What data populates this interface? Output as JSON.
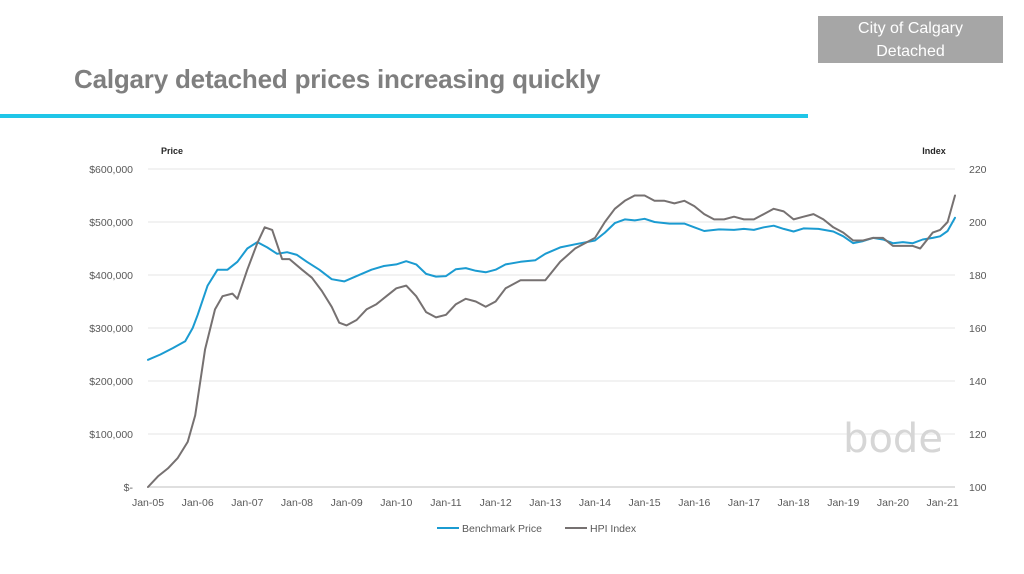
{
  "badge": {
    "line1": "City of Calgary",
    "line2": "Detached"
  },
  "page_title": "Calgary detached prices increasing quickly",
  "logo": "bode",
  "colors": {
    "accent_rule": "#1fc6e8",
    "benchmark": "#1b9bd1",
    "hpi": "#767171",
    "badge_bg": "#a6a6a6"
  },
  "chart_data": {
    "type": "line",
    "left_axis_title": "Price",
    "right_axis_title": "Index",
    "ylim_left": [
      0,
      600000
    ],
    "ylim_right": [
      100,
      220
    ],
    "y_ticks_left": [
      "$-",
      "$100,000",
      "$200,000",
      "$300,000",
      "$400,000",
      "$500,000",
      "$600,000"
    ],
    "y_ticks_right": [
      "100",
      "120",
      "140",
      "160",
      "180",
      "200",
      "220"
    ],
    "x_ticks": [
      "Jan-05",
      "Jan-06",
      "Jan-07",
      "Jan-08",
      "Jan-09",
      "Jan-10",
      "Jan-11",
      "Jan-12",
      "Jan-13",
      "Jan-14",
      "Jan-15",
      "Jan-16",
      "Jan-17",
      "Jan-18",
      "Jan-19",
      "Jan-20",
      "Jan-21"
    ],
    "xlim": [
      2005.0,
      2021.25
    ],
    "grid": true,
    "legend_position": "bottom",
    "series": [
      {
        "name": "Benchmark Price",
        "axis": "left",
        "x": [
          2005.0,
          2005.25,
          2005.5,
          2005.75,
          2005.9,
          2006.0,
          2006.2,
          2006.4,
          2006.6,
          2006.8,
          2007.0,
          2007.2,
          2007.4,
          2007.6,
          2007.8,
          2008.0,
          2008.2,
          2008.45,
          2008.7,
          2008.95,
          2009.2,
          2009.5,
          2009.75,
          2010.0,
          2010.2,
          2010.4,
          2010.6,
          2010.8,
          2011.0,
          2011.2,
          2011.4,
          2011.6,
          2011.8,
          2012.0,
          2012.2,
          2012.5,
          2012.8,
          2013.0,
          2013.3,
          2013.6,
          2014.0,
          2014.2,
          2014.4,
          2014.6,
          2014.8,
          2015.0,
          2015.2,
          2015.5,
          2015.8,
          2016.0,
          2016.2,
          2016.5,
          2016.8,
          2017.0,
          2017.2,
          2017.4,
          2017.6,
          2017.8,
          2018.0,
          2018.2,
          2018.5,
          2018.8,
          2019.0,
          2019.2,
          2019.4,
          2019.6,
          2019.8,
          2020.0,
          2020.2,
          2020.4,
          2020.6,
          2020.8,
          2020.95,
          2021.1,
          2021.25
        ],
        "values": [
          240000,
          250000,
          262000,
          275000,
          300000,
          325000,
          380000,
          410000,
          410000,
          425000,
          450000,
          462000,
          452000,
          440000,
          443000,
          438000,
          425000,
          410000,
          392000,
          388000,
          398000,
          410000,
          417000,
          420000,
          426000,
          420000,
          402000,
          397000,
          398000,
          411000,
          413000,
          408000,
          405000,
          410000,
          420000,
          425000,
          428000,
          440000,
          452000,
          458000,
          465000,
          480000,
          498000,
          505000,
          503000,
          506000,
          500000,
          497000,
          497000,
          490000,
          483000,
          486000,
          485000,
          487000,
          485000,
          490000,
          493000,
          487000,
          482000,
          488000,
          487000,
          482000,
          473000,
          460000,
          464000,
          470000,
          467000,
          460000,
          462000,
          460000,
          467000,
          470000,
          473000,
          483000,
          508000
        ]
      },
      {
        "name": "HPI Index",
        "axis": "right",
        "x": [
          2005.0,
          2005.2,
          2005.4,
          2005.6,
          2005.8,
          2005.95,
          2006.15,
          2006.35,
          2006.5,
          2006.7,
          2006.8,
          2007.0,
          2007.2,
          2007.35,
          2007.5,
          2007.7,
          2007.85,
          2008.1,
          2008.3,
          2008.5,
          2008.7,
          2008.85,
          2009.0,
          2009.2,
          2009.4,
          2009.6,
          2009.8,
          2010.0,
          2010.2,
          2010.4,
          2010.6,
          2010.8,
          2011.0,
          2011.2,
          2011.4,
          2011.6,
          2011.8,
          2012.0,
          2012.2,
          2012.5,
          2012.8,
          2013.0,
          2013.3,
          2013.6,
          2014.0,
          2014.2,
          2014.4,
          2014.6,
          2014.8,
          2015.0,
          2015.2,
          2015.4,
          2015.6,
          2015.8,
          2016.0,
          2016.2,
          2016.4,
          2016.6,
          2016.8,
          2017.0,
          2017.2,
          2017.4,
          2017.6,
          2017.8,
          2018.0,
          2018.2,
          2018.4,
          2018.6,
          2018.8,
          2019.0,
          2019.2,
          2019.4,
          2019.6,
          2019.8,
          2020.0,
          2020.2,
          2020.4,
          2020.55,
          2020.8,
          2020.95,
          2021.1,
          2021.25
        ],
        "values": [
          100,
          104,
          107,
          111,
          117,
          127,
          152,
          167,
          172,
          173,
          171,
          182,
          192,
          198,
          197,
          186,
          186,
          182,
          179,
          174,
          168,
          162,
          161,
          163,
          167,
          169,
          172,
          175,
          176,
          172,
          166,
          164,
          165,
          169,
          171,
          170,
          168,
          170,
          175,
          178,
          178,
          178,
          185,
          190,
          194,
          200,
          205,
          208,
          210,
          210,
          208,
          208,
          207,
          208,
          206,
          203,
          201,
          201,
          202,
          201,
          201,
          203,
          205,
          204,
          201,
          202,
          203,
          201,
          198,
          196,
          193,
          193,
          194,
          194,
          191,
          191,
          191,
          190,
          196,
          197,
          200,
          210
        ]
      }
    ]
  }
}
